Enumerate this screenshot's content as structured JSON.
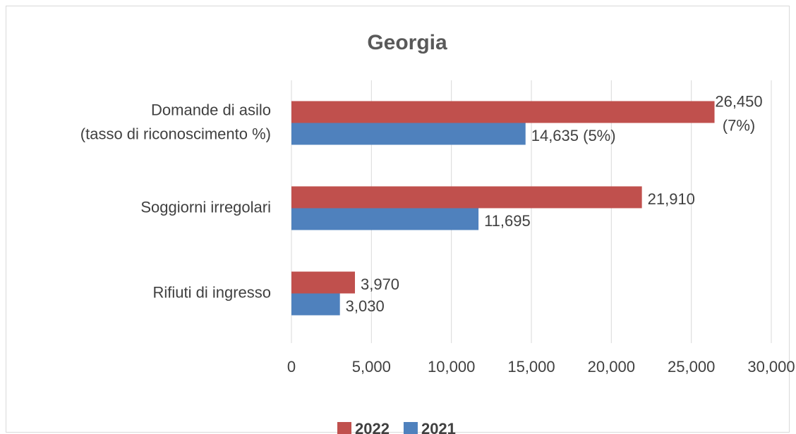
{
  "chart_data": {
    "type": "hbar",
    "title": "Georgia",
    "categories": [
      [
        "Domande di asilo",
        "(tasso di riconoscimento %)"
      ],
      [
        "Soggiorni irregolari"
      ],
      [
        "Rifiuti di ingresso"
      ]
    ],
    "series": [
      {
        "name": "2022",
        "color": "#c0504d",
        "values": [
          26450,
          21910,
          3970
        ],
        "value_labels": [
          "26,450 (7%)",
          "21,910",
          "3,970"
        ]
      },
      {
        "name": "2021",
        "color": "#4f81bd",
        "values": [
          14635,
          11695,
          3030
        ],
        "value_labels": [
          "14,635 (5%)",
          "11,695",
          "3,030"
        ]
      }
    ],
    "xlim": [
      0,
      30000
    ],
    "xticks": [
      0,
      {
        "value": 5000,
        "label": "5,000"
      },
      {
        "value": 10000,
        "label": "10,000"
      },
      {
        "value": 15000,
        "label": "15,000"
      },
      {
        "value": 20000,
        "label": "20,000"
      },
      {
        "value": 25000,
        "label": "25,000"
      },
      {
        "value": 30000,
        "label": "30,000"
      }
    ],
    "grid": true,
    "legend": "bottom"
  }
}
